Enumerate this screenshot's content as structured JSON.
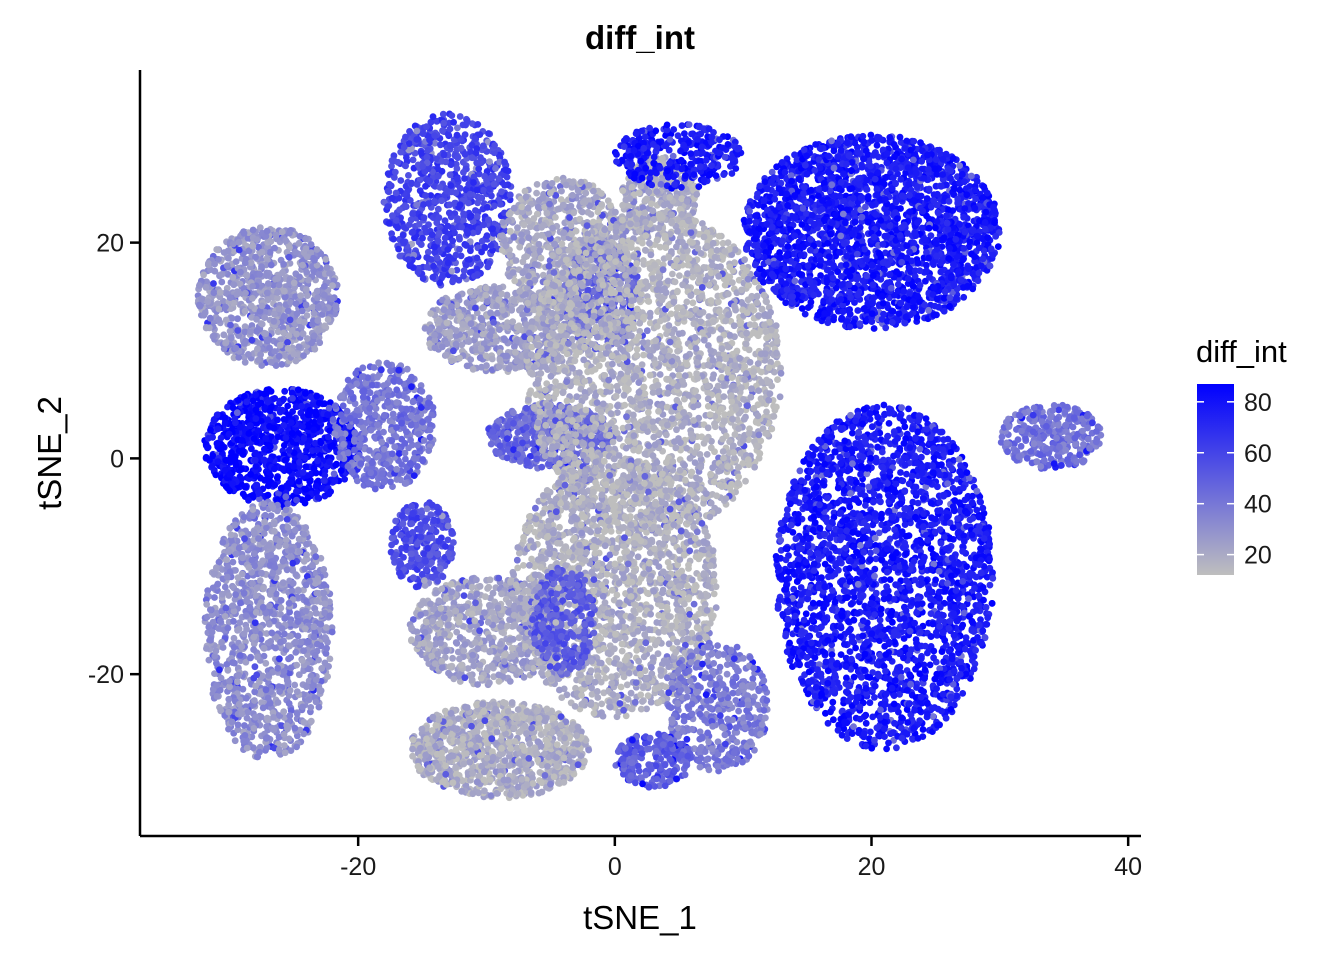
{
  "chart_data": {
    "type": "scatter",
    "title": "diff_int",
    "xlabel": "tSNE_1",
    "ylabel": "tSNE_2",
    "xlim": [
      -37,
      41
    ],
    "ylim": [
      -35,
      36
    ],
    "x_ticks": [
      -20,
      0,
      20,
      40
    ],
    "y_ticks": [
      -20,
      0,
      20
    ],
    "x_tick_labels": [
      "-20",
      "0",
      "20",
      "40"
    ],
    "y_tick_labels": [
      "-20",
      "0",
      "20"
    ],
    "grid": false,
    "legend": {
      "title": "diff_int",
      "placement": "right",
      "type": "colorbar",
      "range": [
        12,
        87
      ],
      "ticks": [
        80,
        60,
        40,
        20
      ],
      "tick_labels": [
        "80",
        "60",
        "40",
        "20"
      ],
      "low_color": "#bebebe",
      "high_color": "#0000ff"
    },
    "clusters": [
      {
        "id": "top-left-gray",
        "cx": -27,
        "cy": 15,
        "rx": 5.5,
        "ry": 6.5,
        "value": 28,
        "n": 900
      },
      {
        "id": "top-left-purple",
        "cx": -13,
        "cy": 24,
        "rx": 5,
        "ry": 8,
        "value": 62,
        "n": 800
      },
      {
        "id": "top-center-gray",
        "cx": -4,
        "cy": 20,
        "rx": 5,
        "ry": 6,
        "value": 20,
        "n": 600
      },
      {
        "id": "top-center-gray2",
        "cx": 3.5,
        "cy": 24,
        "rx": 3,
        "ry": 4,
        "value": 18,
        "n": 300
      },
      {
        "id": "upper-mid-gray",
        "cx": -9,
        "cy": 12,
        "rx": 6,
        "ry": 4,
        "value": 24,
        "n": 600
      },
      {
        "id": "left-blue",
        "cx": -26,
        "cy": 1,
        "rx": 6,
        "ry": 5.5,
        "value": 84,
        "n": 900
      },
      {
        "id": "left-mid-lavender",
        "cx": -18,
        "cy": 3,
        "rx": 4,
        "ry": 6,
        "value": 40,
        "n": 500
      },
      {
        "id": "center-mix",
        "cx": -5,
        "cy": 2,
        "rx": 5,
        "ry": 3,
        "value": 45,
        "n": 500
      },
      {
        "id": "mid-purple-strip",
        "cx": -1,
        "cy": 15,
        "rx": 3,
        "ry": 5,
        "value": 48,
        "n": 300
      },
      {
        "id": "center-gray-big",
        "cx": 3,
        "cy": 8,
        "rx": 10,
        "ry": 15,
        "value": 17,
        "n": 2600
      },
      {
        "id": "center-gray-lower",
        "cx": 0,
        "cy": -12,
        "rx": 8,
        "ry": 12,
        "value": 17,
        "n": 1800
      },
      {
        "id": "bottom-gray",
        "cx": -9,
        "cy": -27,
        "rx": 7,
        "ry": 4.5,
        "value": 18,
        "n": 1000
      },
      {
        "id": "bottom-mid-gray",
        "cx": -10,
        "cy": -16,
        "rx": 6,
        "ry": 5,
        "value": 22,
        "n": 700
      },
      {
        "id": "left-lower-purple",
        "cx": -15,
        "cy": -8,
        "rx": 2.5,
        "ry": 4,
        "value": 58,
        "n": 250
      },
      {
        "id": "lower-left-gray",
        "cx": -27,
        "cy": -16,
        "rx": 5,
        "ry": 12,
        "value": 30,
        "n": 1200
      },
      {
        "id": "center-lower-purple",
        "cx": -4,
        "cy": -15,
        "rx": 2.5,
        "ry": 5,
        "value": 52,
        "n": 300
      },
      {
        "id": "right-bottom-lavender",
        "cx": 8,
        "cy": -23,
        "rx": 4,
        "ry": 6,
        "value": 38,
        "n": 450
      },
      {
        "id": "bottom-center-purple",
        "cx": 3,
        "cy": -28,
        "rx": 3,
        "ry": 2.5,
        "value": 50,
        "n": 200
      },
      {
        "id": "top-right-blue",
        "cx": 20,
        "cy": 21,
        "rx": 10,
        "ry": 9,
        "value": 78,
        "n": 2400
      },
      {
        "id": "top-right-blue-arm",
        "cx": 5,
        "cy": 28,
        "rx": 5,
        "ry": 3,
        "value": 78,
        "n": 300
      },
      {
        "id": "right-blue",
        "cx": 21,
        "cy": -11,
        "rx": 8.5,
        "ry": 16,
        "value": 78,
        "n": 2600
      },
      {
        "id": "far-right-mix",
        "cx": 34,
        "cy": 2,
        "rx": 4,
        "ry": 3,
        "value": 42,
        "n": 300
      }
    ]
  }
}
